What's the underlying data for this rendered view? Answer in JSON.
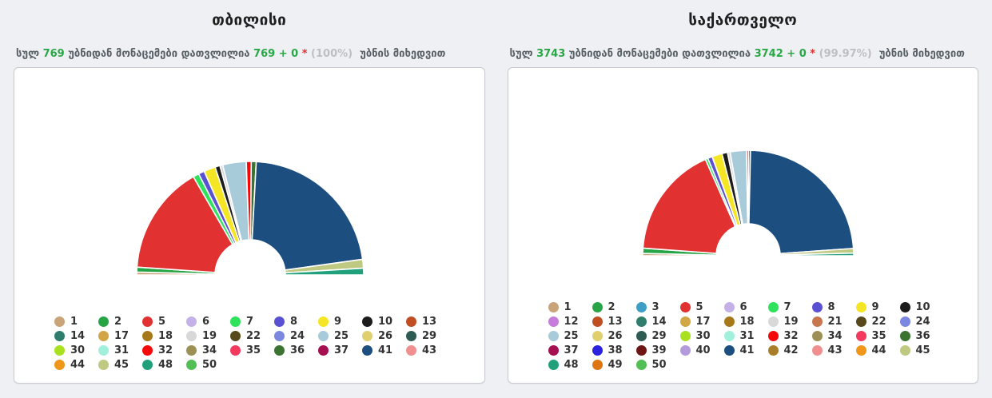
{
  "palette": {
    "1": "#C9A479",
    "2": "#27A546",
    "3": "#3E9EC6",
    "5": "#E23131",
    "6": "#C3B1E8",
    "7": "#2FE25B",
    "8": "#5A50D2",
    "9": "#F5E625",
    "10": "#1C1C1C",
    "12": "#C77BDB",
    "13": "#BF4E22",
    "14": "#2F7D6C",
    "17": "#D2A644",
    "18": "#A6781A",
    "19": "#D8D8D8",
    "21": "#C8764E",
    "22": "#57491C",
    "24": "#7B88E0",
    "25": "#A7CBD9",
    "26": "#E0CF6E",
    "29": "#2E5B52",
    "30": "#A9E121",
    "31": "#A0F0DC",
    "32": "#F50808",
    "34": "#9D9055",
    "35": "#F23A5F",
    "36": "#3B7330",
    "37": "#A50F50",
    "38": "#2B22DD",
    "39": "#6E1616",
    "40": "#B29ADB",
    "41": "#1D4E80",
    "42": "#A87E28",
    "43": "#F08F8F",
    "44": "#F09719",
    "45": "#BFC982",
    "48": "#20A17B",
    "49": "#DE7513",
    "50": "#52BE56"
  },
  "accent_colors": {
    "green": "#28A745",
    "red": "#E03131",
    "muted_gray": "#BDBFC4",
    "navy_leader": "#1D4E80"
  },
  "panels": [
    {
      "title": "თბილისი",
      "summary": {
        "prefix": "სულ",
        "total": "769",
        "middle": "უბნიდან მონაცემები დათვლილია",
        "counted": "769 + 0",
        "star": "*",
        "percent": "(100%)",
        "suffix": "უბნის მიხედვით"
      },
      "legend_numbers": [
        "1",
        "2",
        "5",
        "6",
        "7",
        "8",
        "9",
        "10",
        "13",
        "14",
        "17",
        "18",
        "19",
        "22",
        "24",
        "25",
        "26",
        "29",
        "30",
        "31",
        "32",
        "34",
        "35",
        "36",
        "37",
        "41",
        "43",
        "44",
        "45",
        "48",
        "50"
      ]
    },
    {
      "title": "საქართველო",
      "summary": {
        "prefix": "სულ",
        "total": "3743",
        "middle": "უბნიდან მონაცემები დათვლილია",
        "counted": "3742 + 0",
        "star": "*",
        "percent": "(99.97%)",
        "suffix": "უბნის მიხედვით"
      },
      "legend_numbers": [
        "1",
        "2",
        "3",
        "5",
        "6",
        "7",
        "8",
        "9",
        "10",
        "12",
        "13",
        "14",
        "17",
        "18",
        "19",
        "21",
        "22",
        "24",
        "25",
        "26",
        "29",
        "30",
        "31",
        "32",
        "34",
        "35",
        "36",
        "37",
        "38",
        "39",
        "40",
        "41",
        "42",
        "43",
        "44",
        "45",
        "48",
        "49",
        "50"
      ]
    }
  ],
  "chart_data": [
    {
      "type": "pie",
      "variant": "half_donut",
      "title": "თბილისი",
      "units": "percent of votes (estimated from arc angles)",
      "legend_position": "bottom",
      "segments": [
        {
          "label": "1",
          "value": 0.8
        },
        {
          "label": "2",
          "value": 1.4
        },
        {
          "label": "5",
          "value": 31.1
        },
        {
          "label": "7",
          "value": 1.7
        },
        {
          "label": "8",
          "value": 1.7
        },
        {
          "label": "9",
          "value": 3.3
        },
        {
          "label": "10",
          "value": 1.4
        },
        {
          "label": "19",
          "value": 0.8
        },
        {
          "label": "25",
          "value": 6.7
        },
        {
          "label": "32",
          "value": 1.4
        },
        {
          "label": "36",
          "value": 1.4
        },
        {
          "label": "41",
          "value": 43.9
        },
        {
          "label": "45",
          "value": 2.5
        },
        {
          "label": "48",
          "value": 1.9
        }
      ]
    },
    {
      "type": "pie",
      "variant": "half_donut",
      "title": "საქართველო",
      "units": "percent of votes (estimated from arc angles)",
      "legend_position": "bottom",
      "segments": [
        {
          "label": "1",
          "value": 0.7
        },
        {
          "label": "2",
          "value": 1.6
        },
        {
          "label": "5",
          "value": 34.4
        },
        {
          "label": "7",
          "value": 0.8
        },
        {
          "label": "8",
          "value": 1.4
        },
        {
          "label": "9",
          "value": 3.1
        },
        {
          "label": "10",
          "value": 1.7
        },
        {
          "label": "19",
          "value": 0.8
        },
        {
          "label": "25",
          "value": 5.0
        },
        {
          "label": "32",
          "value": 0.6
        },
        {
          "label": "36",
          "value": 0.6
        },
        {
          "label": "41",
          "value": 47.1
        },
        {
          "label": "45",
          "value": 1.4
        },
        {
          "label": "48",
          "value": 0.8
        }
      ]
    }
  ]
}
